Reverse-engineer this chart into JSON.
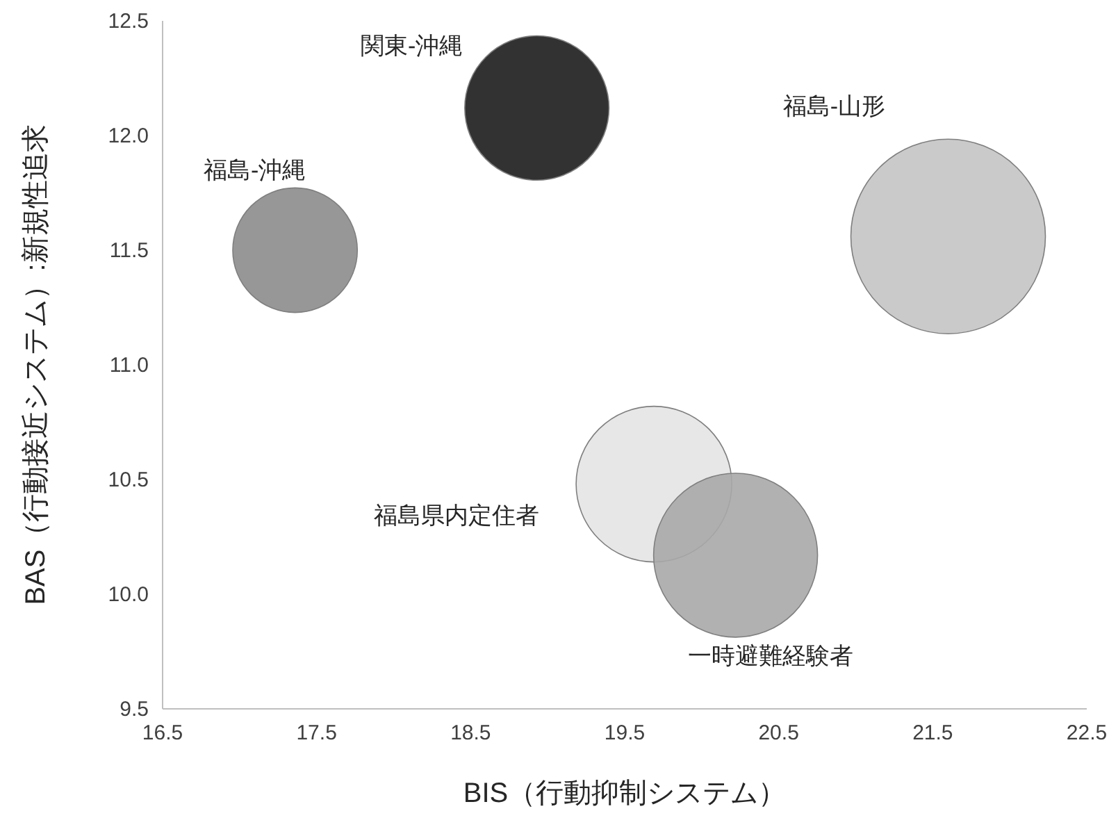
{
  "chart_data": {
    "type": "bubble",
    "xlabel": "BIS（行動抑制システム）",
    "ylabel": "BAS（行動接近システム）:新規性追求",
    "xlim": [
      16.5,
      22.5
    ],
    "xticks": [
      16.5,
      17.5,
      18.5,
      19.5,
      20.5,
      21.5,
      22.5
    ],
    "ylim": [
      9.5,
      12.5
    ],
    "yticks": [
      9.5,
      {
        "value": 10,
        "label": "10.0"
      },
      10.5,
      {
        "value": 11,
        "label": "11.0"
      },
      11.5,
      {
        "value": 12,
        "label": "12.0"
      },
      12.5
    ],
    "grid": false,
    "series": [
      {
        "name": "福島-沖縄",
        "color": "#8c8c8c",
        "x": [
          17.36
        ],
        "values": [
          11.5
        ],
        "sizes": [
          0.41
        ]
      },
      {
        "name": "関東-沖縄",
        "color": "#1c1c1c",
        "x": [
          18.93
        ],
        "values": [
          12.12
        ],
        "sizes": [
          0.55
        ]
      },
      {
        "name": "福島-山形",
        "color": "#c4c4c4",
        "x": [
          21.6
        ],
        "values": [
          11.56
        ],
        "sizes": [
          1
        ]
      },
      {
        "name": "福島県内定住者",
        "color": "#e4e4e4",
        "x": [
          19.69
        ],
        "values": [
          10.48
        ],
        "sizes": [
          0.64
        ]
      },
      {
        "name": "一時避難経験者",
        "color": "#a8a8a8",
        "x": [
          20.22
        ],
        "values": [
          10.17
        ],
        "sizes": [
          0.71
        ]
      }
    ]
  }
}
